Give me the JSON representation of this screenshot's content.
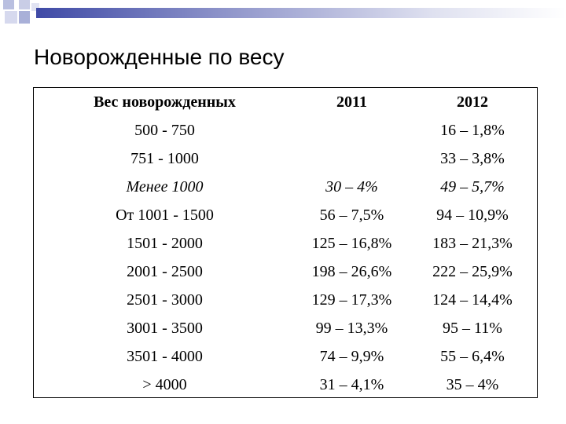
{
  "slide": {
    "title": "Новорожденные по весу"
  },
  "table": {
    "headers": [
      "Вес новорожденных",
      "2011",
      "2012"
    ],
    "rows": [
      {
        "weight": "500 - 750",
        "y2011": "",
        "y2012": "16 – 1,8%",
        "italic": false
      },
      {
        "weight": "751 - 1000",
        "y2011": "",
        "y2012": "33 – 3,8%",
        "italic": false
      },
      {
        "weight": "Менее 1000",
        "y2011": "30 – 4%",
        "y2012": "49 – 5,7%",
        "italic": true
      },
      {
        "weight": "От 1001 - 1500",
        "y2011": "56 – 7,5%",
        "y2012": "94 – 10,9%",
        "italic": false
      },
      {
        "weight": "1501 - 2000",
        "y2011": "125 – 16,8%",
        "y2012": "183 – 21,3%",
        "italic": false
      },
      {
        "weight": "2001 - 2500",
        "y2011": "198 – 26,6%",
        "y2012": "222 – 25,9%",
        "italic": false
      },
      {
        "weight": "2501 - 3000",
        "y2011": "129 – 17,3%",
        "y2012": "124 – 14,4%",
        "italic": false
      },
      {
        "weight": "3001 - 3500",
        "y2011": "99 – 13,3%",
        "y2012": "95 – 11%",
        "italic": false
      },
      {
        "weight": "3501 - 4000",
        "y2011": "74 – 9,9%",
        "y2012": "55 – 6,4%",
        "italic": false
      },
      {
        "weight": "> 4000",
        "y2011": "31 – 4,1%",
        "y2012": "35 – 4%",
        "italic": false
      }
    ]
  },
  "colors": {
    "rule_start": "#3f4aa6",
    "decor_squares": "#b9bfe0"
  }
}
